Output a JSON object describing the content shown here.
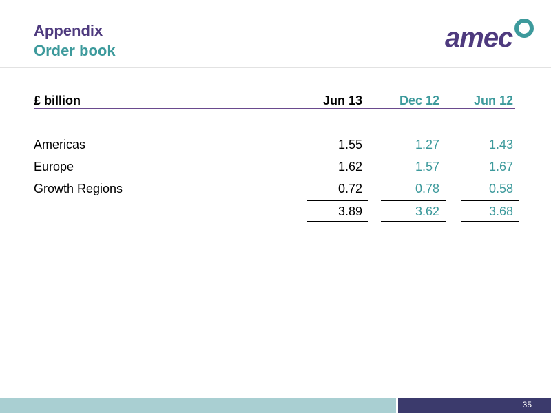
{
  "header": {
    "title": "Appendix",
    "subtitle": "Order book",
    "logo": "amec"
  },
  "table": {
    "columns": [
      "£ billion",
      "Jun 13",
      "Dec 12",
      "Jun 12"
    ],
    "rows": [
      [
        "Americas",
        "1.55",
        "1.27",
        "1.43"
      ],
      [
        "Europe",
        "1.62",
        "1.57",
        "1.67"
      ],
      [
        "Growth Regions",
        "0.72",
        "0.78",
        "0.58"
      ]
    ],
    "total": [
      "3.89",
      "3.62",
      "3.68"
    ]
  },
  "footer": {
    "page": "35"
  }
}
